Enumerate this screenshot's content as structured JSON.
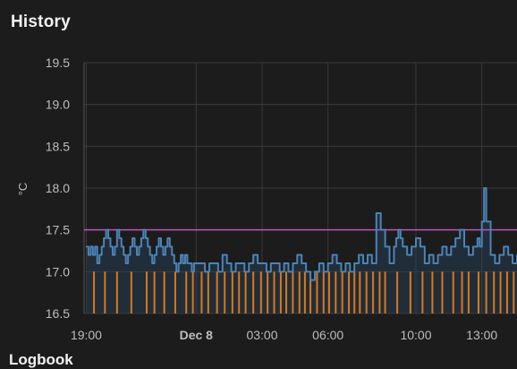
{
  "card": {
    "title": "History",
    "next_section_title_partial": "Logbook"
  },
  "colors": {
    "background": "#1c1c1c",
    "grid": "#3a3a3a",
    "temperature_line": "#4b84b8",
    "temperature_fill": "#27435c",
    "target_line": "#c250c4",
    "heating_bars": "#d9781c"
  },
  "chart_data": {
    "type": "line",
    "ylabel": "°C",
    "ylim": [
      16.5,
      19.5
    ],
    "y_ticks": [
      "19.5",
      "19.0",
      "18.5",
      "18.0",
      "17.5",
      "17.0",
      "16.5"
    ],
    "x_ticks": [
      {
        "label": "19:00",
        "t": 0,
        "bold": false
      },
      {
        "label": "Dec 8",
        "t": 5,
        "bold": true
      },
      {
        "label": "03:00",
        "t": 8,
        "bold": false
      },
      {
        "label": "06:00",
        "t": 11,
        "bold": false
      },
      {
        "label": "10:00",
        "t": 15,
        "bold": false
      },
      {
        "label": "13:00",
        "t": 18,
        "bold": false
      }
    ],
    "x_range_hours": [
      -0.1,
      19.6
    ],
    "series": [
      {
        "kind": "temperature",
        "x": [
          0,
          0.1,
          0.2,
          0.3,
          0.4,
          0.5,
          0.6,
          0.7,
          0.8,
          0.9,
          1.0,
          1.1,
          1.2,
          1.3,
          1.4,
          1.5,
          1.6,
          1.7,
          1.8,
          1.9,
          2.0,
          2.1,
          2.2,
          2.3,
          2.4,
          2.5,
          2.6,
          2.7,
          2.8,
          2.9,
          3.0,
          3.1,
          3.2,
          3.3,
          3.4,
          3.5,
          3.6,
          3.7,
          3.8,
          3.9,
          4.0,
          4.1,
          4.2,
          4.3,
          4.4,
          4.5,
          4.6,
          4.7,
          4.8,
          4.9,
          5.0,
          5.2,
          5.4,
          5.6,
          5.8,
          6.0,
          6.2,
          6.4,
          6.6,
          6.8,
          7.0,
          7.2,
          7.4,
          7.6,
          7.8,
          8.0,
          8.2,
          8.4,
          8.6,
          8.8,
          9.0,
          9.2,
          9.4,
          9.6,
          9.8,
          10.0,
          10.2,
          10.4,
          10.6,
          10.8,
          11.0,
          11.2,
          11.4,
          11.6,
          11.8,
          12.0,
          12.2,
          12.4,
          12.6,
          12.8,
          13.0,
          13.2,
          13.4,
          13.6,
          13.8,
          14.0,
          14.1,
          14.2,
          14.3,
          14.4,
          14.6,
          14.8,
          15.0,
          15.2,
          15.4,
          15.6,
          15.8,
          16.0,
          16.2,
          16.4,
          16.6,
          16.8,
          17.0,
          17.2,
          17.4,
          17.6,
          17.8,
          17.9,
          18.0,
          18.1,
          18.2,
          18.4,
          18.6,
          18.8,
          19.0,
          19.2,
          19.4,
          19.6
        ],
        "values": [
          17.3,
          17.2,
          17.3,
          17.2,
          17.3,
          17.1,
          17.2,
          17.3,
          17.4,
          17.5,
          17.4,
          17.3,
          17.2,
          17.3,
          17.5,
          17.4,
          17.3,
          17.2,
          17.1,
          17.2,
          17.3,
          17.4,
          17.3,
          17.2,
          17.3,
          17.4,
          17.5,
          17.4,
          17.3,
          17.2,
          17.1,
          17.2,
          17.3,
          17.4,
          17.3,
          17.2,
          17.3,
          17.4,
          17.3,
          17.2,
          17.1,
          17.0,
          17.1,
          17.2,
          17.1,
          17.2,
          17.1,
          17.1,
          17.0,
          17.1,
          17.1,
          17.1,
          17.0,
          17.1,
          17.1,
          17.0,
          17.2,
          17.1,
          17.0,
          17.1,
          17.1,
          17.0,
          17.1,
          17.2,
          17.1,
          17.1,
          17.0,
          17.1,
          17.1,
          17.0,
          17.1,
          17.0,
          17.1,
          17.2,
          17.1,
          17.0,
          16.9,
          17.0,
          17.1,
          17.0,
          17.1,
          17.2,
          17.1,
          17.0,
          17.1,
          17.0,
          17.1,
          17.2,
          17.1,
          17.2,
          17.1,
          17.7,
          17.5,
          17.3,
          17.1,
          17.3,
          17.4,
          17.5,
          17.4,
          17.3,
          17.2,
          17.3,
          17.4,
          17.3,
          17.1,
          17.2,
          17.1,
          17.2,
          17.3,
          17.2,
          17.3,
          17.4,
          17.5,
          17.3,
          17.2,
          17.3,
          17.4,
          17.3,
          17.6,
          18.0,
          17.6,
          17.2,
          17.1,
          17.2,
          17.3,
          17.2,
          17.1,
          17.2
        ]
      },
      {
        "kind": "target",
        "x": [
          0,
          19.6
        ],
        "values": [
          17.5,
          17.5
        ]
      },
      {
        "kind": "heating_on",
        "x": [
          0.35,
          0.85,
          1.4,
          2.05,
          2.75,
          3.1,
          3.55,
          4.05,
          4.55,
          4.85,
          5.25,
          5.55,
          5.95,
          6.3,
          6.65,
          6.95,
          7.25,
          7.6,
          7.95,
          8.25,
          8.55,
          8.85,
          9.1,
          9.4,
          9.7,
          9.95,
          10.2,
          10.5,
          10.8,
          11.05,
          11.35,
          11.65,
          11.95,
          12.2,
          12.45,
          12.75,
          13.05,
          13.35,
          13.6,
          14.15,
          14.75,
          15.3,
          15.75,
          16.2,
          16.7,
          17.1,
          17.4,
          17.85,
          18.2,
          18.55,
          18.85,
          19.15,
          19.45
        ],
        "values": [
          17,
          17,
          17,
          17,
          17,
          17,
          17,
          17,
          17,
          17,
          17,
          17,
          17,
          17,
          17,
          17,
          17,
          17,
          17,
          17,
          17,
          17,
          17,
          17,
          17,
          17,
          17,
          17,
          17,
          17,
          17,
          17,
          17,
          17,
          17,
          17,
          17,
          17,
          17,
          17,
          17,
          17,
          17,
          17,
          17,
          17,
          17,
          17,
          17,
          17,
          17,
          17,
          17
        ]
      }
    ]
  }
}
